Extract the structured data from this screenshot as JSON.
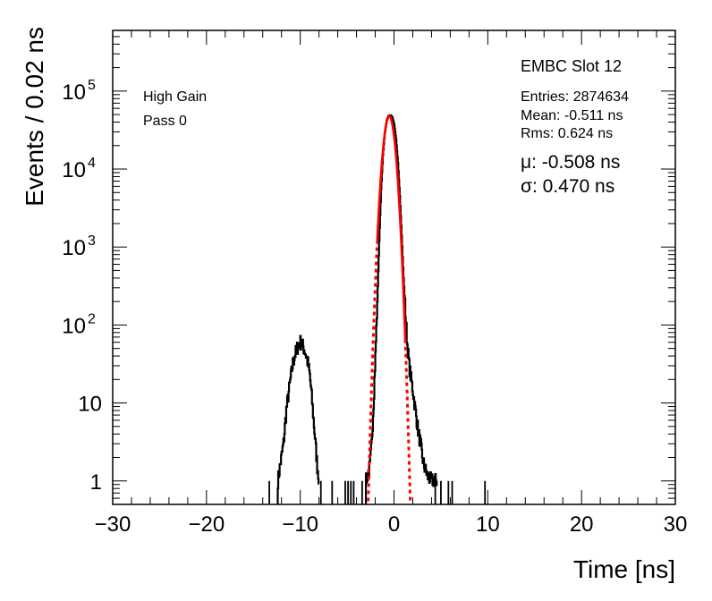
{
  "chart_data": {
    "type": "histogram",
    "title": "",
    "xlabel": "Time [ns]",
    "ylabel": "Events / 0.02 ns",
    "xlim": [
      -30,
      30
    ],
    "ylim": [
      0.5,
      600000
    ],
    "y_scale": "log",
    "x_ticks": [
      "−30",
      "−20",
      "−10",
      "0",
      "10",
      "20",
      "30"
    ],
    "y_ticks": [
      {
        "value": 1,
        "label": "1"
      },
      {
        "value": 10,
        "label": "10"
      },
      {
        "value": 100,
        "label": "10",
        "exp": "2"
      },
      {
        "value": 1000,
        "label": "10",
        "exp": "3"
      },
      {
        "value": 10000,
        "label": "10",
        "exp": "4"
      },
      {
        "value": 100000,
        "label": "10",
        "exp": "5"
      }
    ],
    "series": [
      {
        "name": "",
        "kind": "histogram",
        "color": "#000000",
        "x": [
          -12.4,
          -11.8,
          -11.5,
          -11.2,
          -11.0,
          -10.8,
          -10.6,
          -10.4,
          -10.2,
          -10.0,
          -9.8,
          -9.6,
          -9.4,
          -9.2,
          -9.0,
          -8.8,
          -8.6,
          -8.4,
          -8.2,
          -8.0,
          -3.0,
          -2.6,
          -2.4,
          -2.2,
          -2.0,
          -1.8,
          -1.6,
          -1.4,
          -1.2,
          -1.0,
          -0.8,
          -0.6,
          -0.4,
          -0.2,
          0.0,
          0.2,
          0.4,
          0.6,
          0.8,
          1.0,
          1.2,
          1.4,
          1.6,
          1.8,
          2.0,
          2.2,
          2.4,
          2.6,
          2.8,
          3.0,
          3.2,
          3.4,
          3.6,
          4.0,
          4.6
        ],
        "y": [
          1,
          3,
          8,
          15,
          22,
          32,
          40,
          48,
          55,
          60,
          55,
          48,
          40,
          32,
          22,
          12,
          6,
          3,
          1.5,
          1,
          1,
          1.5,
          3,
          10,
          40,
          200,
          1200,
          5500,
          15000,
          29000,
          42000,
          48000,
          49000,
          46000,
          37000,
          24000,
          12000,
          4500,
          1400,
          400,
          140,
          55,
          30,
          20,
          14,
          9,
          6,
          4,
          3,
          2,
          1.5,
          1.3,
          1.1,
          1,
          1
        ]
      },
      {
        "name": "",
        "kind": "gaussian-fit",
        "color": "#ff0000",
        "mu": -0.508,
        "sigma": 0.47,
        "amplitude": 48000,
        "fit_range": [
          -1.8,
          1.2
        ]
      }
    ],
    "scattered_singles": [
      -13.3,
      -7.8,
      -6.6,
      -5.2,
      -4.9,
      -4.6,
      -4.3,
      -3.4,
      4.4,
      5.0,
      5.8,
      6.2,
      9.7
    ],
    "grid": false,
    "legend": "none"
  },
  "annotations": {
    "gain": "High Gain",
    "pass": "Pass 0",
    "slot": "EMBC Slot 12",
    "entries": "Entries: 2874634",
    "mean": "Mean: -0.511 ns",
    "rms": "Rms: 0.624 ns",
    "mu": "μ: -0.508 ns",
    "sigma": "σ: 0.470 ns"
  }
}
